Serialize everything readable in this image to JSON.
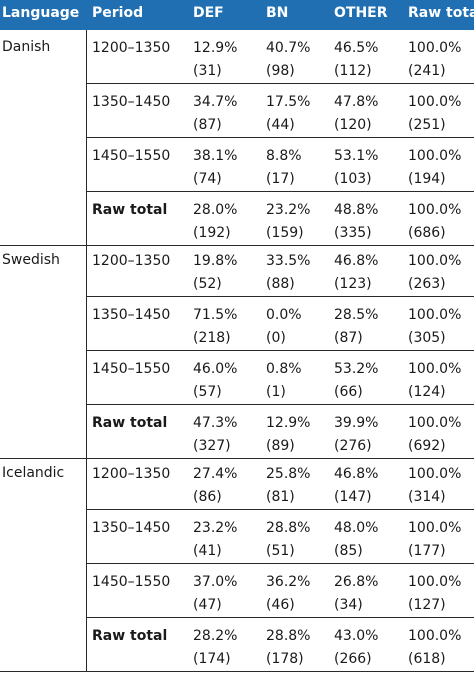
{
  "table": {
    "headers": {
      "language": "Language",
      "period": "Period",
      "def": "DEF",
      "bn": "BN",
      "other": "OTHER",
      "raw_total": "Raw total"
    },
    "groups": [
      {
        "language": "Danish",
        "rows": [
          {
            "period": "1200–1350",
            "def": [
              "12.9%",
              "(31)"
            ],
            "bn": [
              "40.7%",
              "(98)"
            ],
            "other": [
              "46.5%",
              "(112)"
            ],
            "raw": [
              "100.0%",
              "(241)"
            ]
          },
          {
            "period": "1350–1450",
            "def": [
              "34.7%",
              "(87)"
            ],
            "bn": [
              "17.5%",
              "(44)"
            ],
            "other": [
              "47.8%",
              "(120)"
            ],
            "raw": [
              "100.0%",
              "(251)"
            ]
          },
          {
            "period": "1450–1550",
            "def": [
              "38.1%",
              "(74)"
            ],
            "bn": [
              "8.8%",
              "(17)"
            ],
            "other": [
              "53.1%",
              "(103)"
            ],
            "raw": [
              "100.0%",
              "(194)"
            ]
          },
          {
            "period": "Raw total",
            "def": [
              "28.0%",
              "(192)"
            ],
            "bn": [
              "23.2%",
              "(159)"
            ],
            "other": [
              "48.8%",
              "(335)"
            ],
            "raw": [
              "100.0%",
              "(686)"
            ]
          }
        ]
      },
      {
        "language": "Swedish",
        "rows": [
          {
            "period": "1200–1350",
            "def": [
              "19.8%",
              "(52)"
            ],
            "bn": [
              "33.5%",
              "(88)"
            ],
            "other": [
              "46.8%",
              "(123)"
            ],
            "raw": [
              "100.0%",
              "(263)"
            ]
          },
          {
            "period": "1350–1450",
            "def": [
              "71.5%",
              "(218)"
            ],
            "bn": [
              "0.0%",
              "(0)"
            ],
            "other": [
              "28.5%",
              "(87)"
            ],
            "raw": [
              "100.0%",
              "(305)"
            ]
          },
          {
            "period": "1450–1550",
            "def": [
              "46.0%",
              "(57)"
            ],
            "bn": [
              "0.8%",
              "(1)"
            ],
            "other": [
              "53.2%",
              "(66)"
            ],
            "raw": [
              "100.0%",
              "(124)"
            ]
          },
          {
            "period": "Raw total",
            "def": [
              "47.3%",
              "(327)"
            ],
            "bn": [
              "12.9%",
              "(89)"
            ],
            "other": [
              "39.9%",
              "(276)"
            ],
            "raw": [
              "100.0%",
              "(692)"
            ]
          }
        ]
      },
      {
        "language": "Icelandic",
        "rows": [
          {
            "period": "1200–1350",
            "def": [
              "27.4%",
              "(86)"
            ],
            "bn": [
              "25.8%",
              "(81)"
            ],
            "other": [
              "46.8%",
              "(147)"
            ],
            "raw": [
              "100.0%",
              "(314)"
            ]
          },
          {
            "period": "1350–1450",
            "def": [
              "23.2%",
              "(41)"
            ],
            "bn": [
              "28.8%",
              "(51)"
            ],
            "other": [
              "48.0%",
              "(85)"
            ],
            "raw": [
              "100.0%",
              "(177)"
            ]
          },
          {
            "period": "1450–1550",
            "def": [
              "37.0%",
              "(47)"
            ],
            "bn": [
              "36.2%",
              "(46)"
            ],
            "other": [
              "26.8%",
              "(34)"
            ],
            "raw": [
              "100.0%",
              "(127)"
            ]
          },
          {
            "period": "Raw total",
            "def": [
              "28.2%",
              "(174)"
            ],
            "bn": [
              "28.8%",
              "(178)"
            ],
            "other": [
              "43.0%",
              "(266)"
            ],
            "raw": [
              "100.0%",
              "(618)"
            ]
          }
        ]
      }
    ]
  },
  "colors": {
    "header_bg": "#1f6fb2",
    "header_text": "#ffffff",
    "rule": "#2a2a2a"
  }
}
